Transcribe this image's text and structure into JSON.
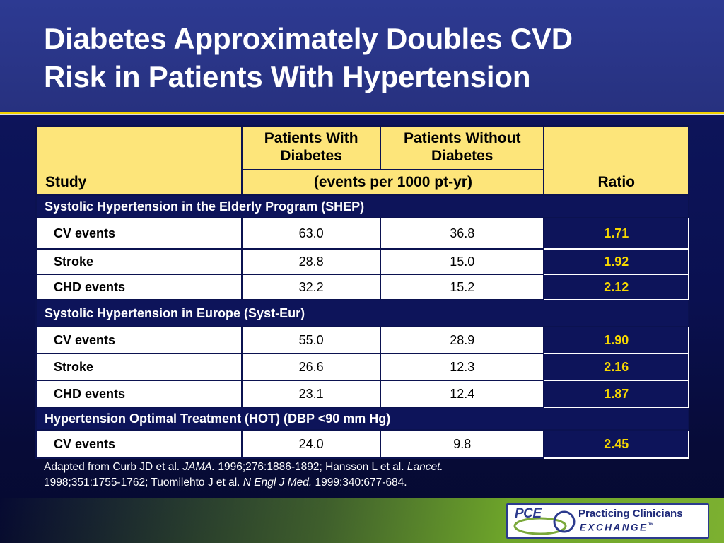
{
  "title": {
    "line1": "Diabetes Approximately Doubles CVD",
    "line2": "Risk in Patients With Hypertension"
  },
  "table": {
    "headers": {
      "study": "Study",
      "with_diabetes": "Patients With Diabetes",
      "without_diabetes": "Patients Without Diabetes",
      "units": "(events per 1000 pt-yr)",
      "ratio": "Ratio"
    },
    "sections": [
      {
        "name": "Systolic Hypertension in the Elderly Program (SHEP)",
        "rows": [
          {
            "label": "CV events",
            "with": "63.0",
            "without": "36.8",
            "ratio": "1.71"
          },
          {
            "label": "Stroke",
            "with": "28.8",
            "without": "15.0",
            "ratio": "1.92"
          },
          {
            "label": "CHD events",
            "with": "32.2",
            "without": "15.2",
            "ratio": "2.12"
          }
        ]
      },
      {
        "name": "Systolic Hypertension in Europe (Syst-Eur)",
        "rows": [
          {
            "label": "CV events",
            "with": "55.0",
            "without": "28.9",
            "ratio": "1.90"
          },
          {
            "label": "Stroke",
            "with": "26.6",
            "without": "12.3",
            "ratio": "2.16"
          },
          {
            "label": "CHD events",
            "with": "23.1",
            "without": "12.4",
            "ratio": "1.87"
          }
        ]
      },
      {
        "name": "Hypertension Optimal Treatment (HOT) (DBP <90 mm Hg)",
        "rows": [
          {
            "label": "CV events",
            "with": "24.0",
            "without": "9.8",
            "ratio": "2.45"
          }
        ]
      }
    ]
  },
  "footnote": {
    "part1": "Adapted from Curb JD et al. ",
    "journal1": "JAMA.",
    "part2": " 1996;276:1886-1892; Hansson L et al. ",
    "journal2": "Lancet.",
    "part3": "1998;351:1755-1762; Tuomilehto J et al. ",
    "journal3": "N Engl J Med.",
    "part4": " 1999:340:677-684."
  },
  "logo": {
    "abbr": "PCE",
    "line1": "Practicing Clinicians",
    "line2": "EXCHANGE",
    "tm": "™"
  },
  "colors": {
    "header_bg": "#2d3a92",
    "accent_yellow": "#f3d400",
    "table_header_bg": "#fde57a",
    "ratio_text": "#f6d700",
    "navy": "#0d145a"
  }
}
